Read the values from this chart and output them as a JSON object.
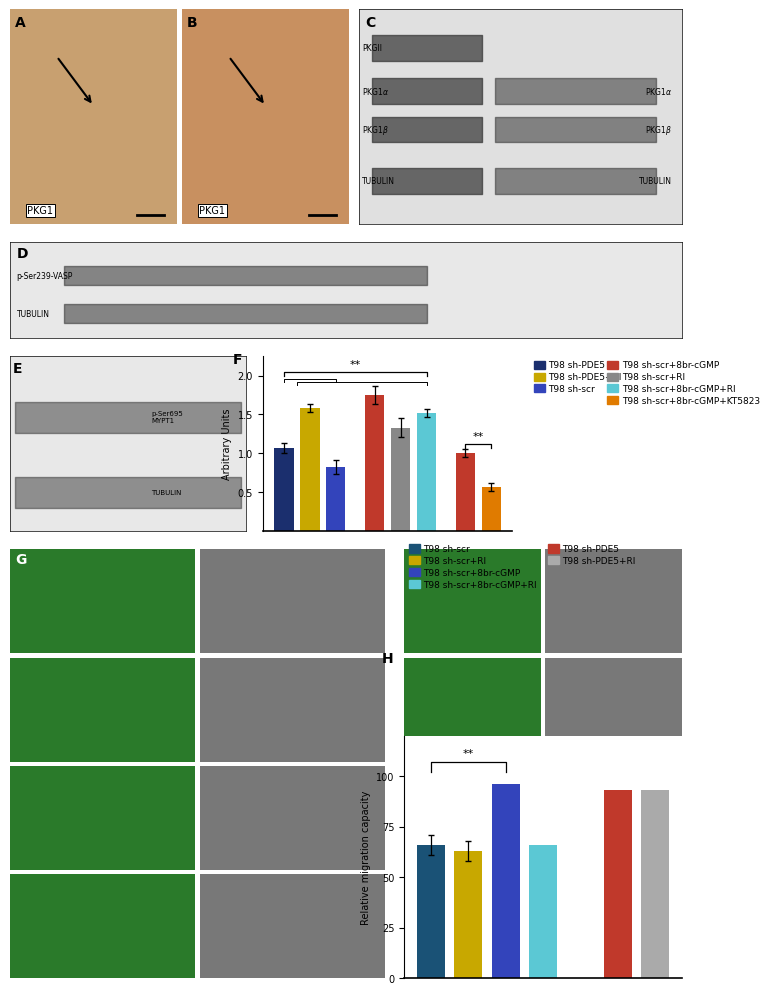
{
  "panel_F": {
    "bars": [
      {
        "name": "T98 sh-PDE5",
        "color": "#1b2f6e",
        "value": 1.07,
        "err": 0.06
      },
      {
        "name": "T98 sh-PDE5+RI",
        "color": "#c8a800",
        "value": 1.58,
        "err": 0.05
      },
      {
        "name": "T98 sh-scr",
        "color": "#3344bb",
        "value": 0.82,
        "err": 0.09
      },
      {
        "name": "T98 sh-scr+8br-cGMP",
        "color": "#c0392b",
        "value": 1.75,
        "err": 0.12
      },
      {
        "name": "T98 sh-scr+RI",
        "color": "#888888",
        "value": 1.33,
        "err": 0.12
      },
      {
        "name": "T98 sh-scr+8br-cGMP+RI",
        "color": "#5bc8d4",
        "value": 1.52,
        "err": 0.05
      },
      {
        "name": "T98 sh-scr+8br-cGMP",
        "color": "#c0392b",
        "value": 1.0,
        "err": 0.05
      },
      {
        "name": "T98 sh-scr+8br-cGMP+KT5823",
        "color": "#e07b00",
        "value": 0.57,
        "err": 0.05
      }
    ],
    "positions": [
      0,
      1,
      2,
      3.5,
      4.5,
      5.5,
      7.0,
      8.0
    ],
    "ylabel": "Arbitrary Units",
    "ylim": [
      0,
      2.25
    ],
    "yticks": [
      0.5,
      1.0,
      1.5,
      2.0
    ],
    "legend_left": [
      {
        "name": "T98 sh-PDE5",
        "color": "#1b2f6e"
      },
      {
        "name": "T98 sh-PDE5+RI",
        "color": "#c8a800"
      },
      {
        "name": "T98 sh-scr",
        "color": "#3344bb"
      }
    ],
    "legend_right": [
      {
        "name": "T98 sh-scr+8br-cGMP",
        "color": "#c0392b"
      },
      {
        "name": "T98 sh-scr+RI",
        "color": "#888888"
      },
      {
        "name": "T98 sh-scr+8br-cGMP+RI",
        "color": "#5bc8d4"
      },
      {
        "name": "T98 sh-scr+8br-cGMP+KT5823",
        "color": "#e07b00"
      }
    ]
  },
  "panel_H": {
    "bars": [
      {
        "name": "T98 sh-scr",
        "color": "#1a5276",
        "value": 66,
        "err": 5
      },
      {
        "name": "T98 sh-scr+RI",
        "color": "#c8a800",
        "value": 63,
        "err": 5
      },
      {
        "name": "T98 sh-scr+8br-cGMP",
        "color": "#3344bb",
        "value": 96,
        "err": 0
      },
      {
        "name": "T98 sh-scr+8br-cGMP+RI",
        "color": "#5bc8d4",
        "value": 66,
        "err": 0
      },
      {
        "name": "T98 sh-PDE5",
        "color": "#c0392b",
        "value": 93,
        "err": 0
      },
      {
        "name": "T98 sh-PDE5+RI",
        "color": "#aaaaaa",
        "value": 93,
        "err": 0
      }
    ],
    "positions": [
      0,
      1,
      2,
      3,
      5,
      6
    ],
    "ylabel": "Relative migration capacity",
    "ylim": [
      0,
      120
    ],
    "yticks": [
      0,
      25,
      50,
      75,
      100
    ],
    "legend_left": [
      {
        "name": "T98 sh-scr",
        "color": "#1a5276"
      },
      {
        "name": "T98 sh-scr+RI",
        "color": "#c8a800"
      },
      {
        "name": "T98 sh-scr+8br-cGMP",
        "color": "#3344bb"
      },
      {
        "name": "T98 sh-scr+8br-cGMP+RI",
        "color": "#5bc8d4"
      }
    ],
    "legend_right": [
      {
        "name": "T98 sh-PDE5",
        "color": "#c0392b"
      },
      {
        "name": "T98 sh-PDE5+RI",
        "color": "#aaaaaa"
      }
    ]
  },
  "bg_color": "#ffffff",
  "panel_label_fontsize": 10,
  "axis_fontsize": 7,
  "tick_fontsize": 7,
  "legend_fontsize": 6.5
}
